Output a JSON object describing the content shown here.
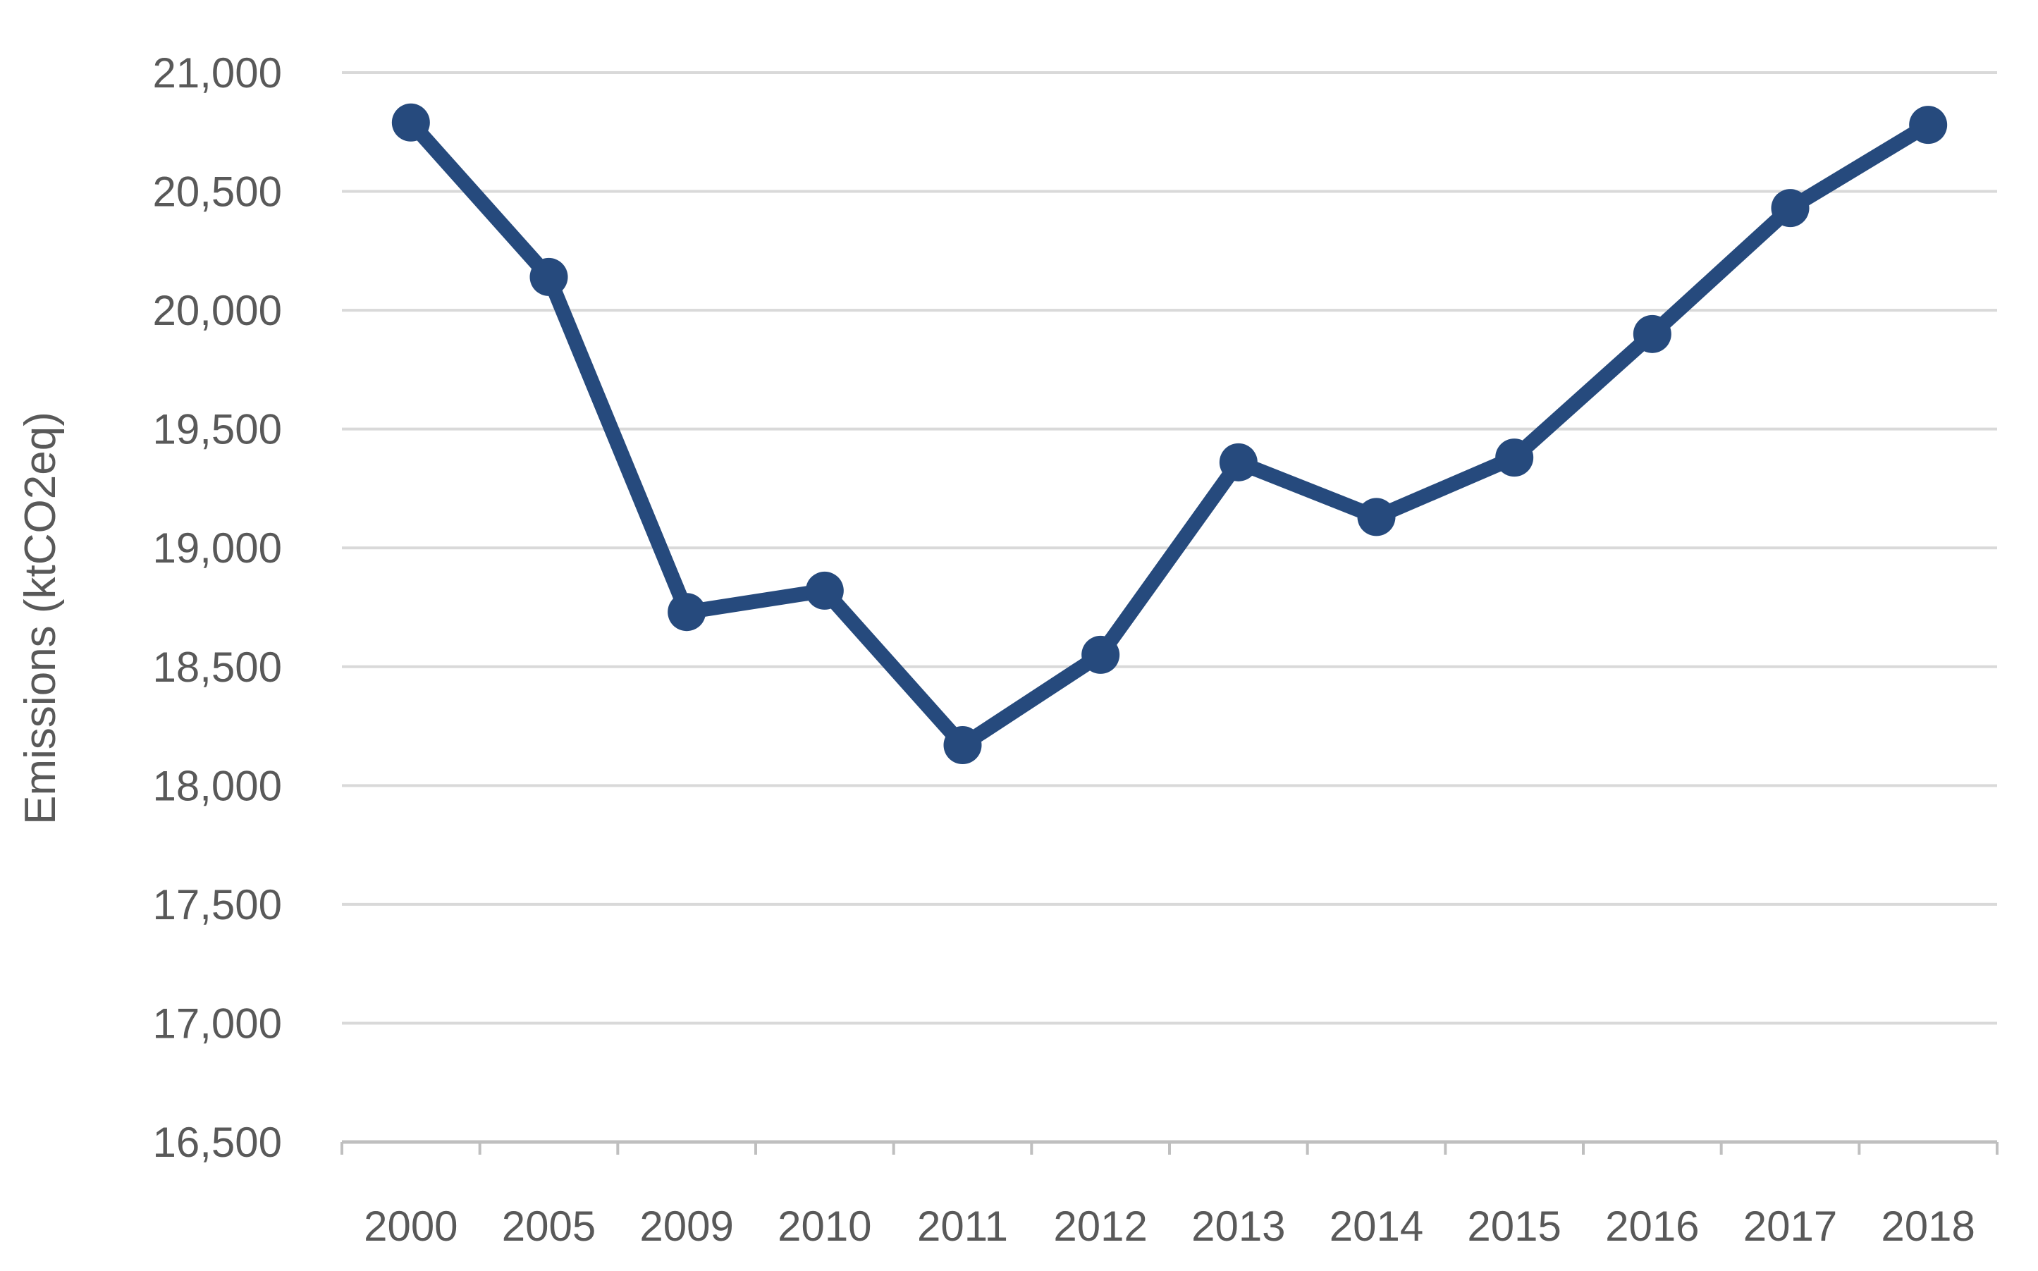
{
  "chart_data": {
    "type": "line",
    "title": "",
    "ylabel": "Emissions (ktCO2eq)",
    "xlabel": "",
    "categories": [
      "2000",
      "2005",
      "2009",
      "2010",
      "2011",
      "2012",
      "2013",
      "2014",
      "2015",
      "2016",
      "2017",
      "2018"
    ],
    "series": [
      {
        "name": "Emissions",
        "values": [
          20790,
          20140,
          18730,
          18820,
          18170,
          18550,
          19360,
          19130,
          19380,
          19900,
          20430,
          20780
        ]
      }
    ],
    "ylim": [
      16500,
      21000
    ],
    "ytick_step": 500,
    "ytick_labels": [
      "16,500",
      "17,000",
      "17,500",
      "18,000",
      "18,500",
      "19,000",
      "19,500",
      "20,000",
      "20,500",
      "21,000"
    ],
    "grid": true,
    "legend_position": "none",
    "colors": {
      "line": "#264A7D",
      "marker": "#264A7D",
      "gridline": "#D9D9D9",
      "axis_line": "#BFBFBF",
      "tick_text": "#595959"
    }
  }
}
